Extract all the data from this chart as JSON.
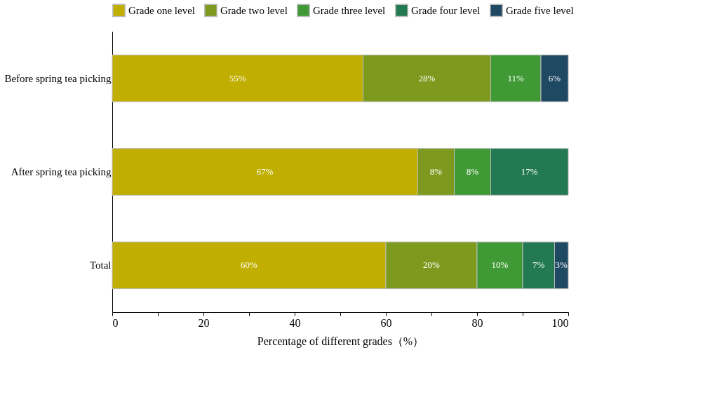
{
  "chart_data": {
    "type": "bar",
    "orientation": "horizontal",
    "stacked": true,
    "xlabel": "Percentage of different grades（%）",
    "categories": [
      "Before spring tea picking",
      "After spring tea picking",
      "Total"
    ],
    "series": [
      {
        "name": "Grade one level",
        "color": "#c0ae00",
        "values": [
          55,
          67,
          60
        ],
        "value_labels": [
          "55%",
          "67%",
          "60%"
        ]
      },
      {
        "name": "Grade two level",
        "color": "#7d9a1e",
        "values": [
          28,
          8,
          20
        ],
        "value_labels": [
          "28%",
          "8%",
          "20%"
        ]
      },
      {
        "name": "Grade three level",
        "color": "#3f9a35",
        "values": [
          11,
          8,
          10
        ],
        "value_labels": [
          "11%",
          "8%",
          "10%"
        ]
      },
      {
        "name": "Grade four level",
        "color": "#237a52",
        "values": [
          null,
          17,
          7
        ],
        "value_labels": [
          null,
          "17%",
          "7%"
        ]
      },
      {
        "name": "Grade five level",
        "color": "#1f4863",
        "values": [
          6,
          null,
          3
        ],
        "value_labels": [
          "6%",
          null,
          "3%"
        ]
      }
    ],
    "xlim": [
      0,
      100
    ],
    "xticks": [
      0,
      {
        "value": 10,
        "label": null
      },
      20,
      {
        "value": 30,
        "label": null
      },
      40,
      {
        "value": 50,
        "label": null
      },
      60,
      {
        "value": 70,
        "label": null
      },
      80,
      {
        "value": 90,
        "label": null
      },
      100
    ],
    "legend": "top"
  }
}
